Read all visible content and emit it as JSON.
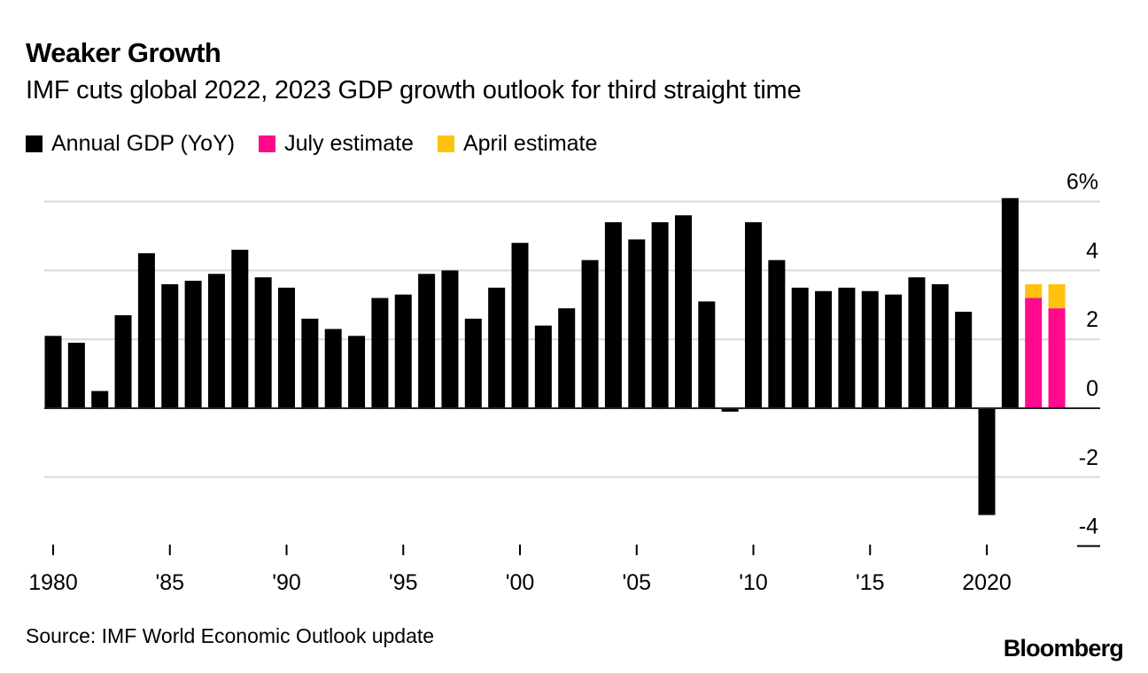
{
  "header": {
    "title": "Weaker Growth",
    "subtitle": "IMF cuts global 2022, 2023 GDP growth outlook for third straight time"
  },
  "legend": [
    {
      "label": "Annual GDP (YoY)",
      "color": "#000000"
    },
    {
      "label": "July estimate",
      "color": "#ff0a8c"
    },
    {
      "label": "April estimate",
      "color": "#ffc20e"
    }
  ],
  "footer": {
    "source": "Source: IMF World Economic Outlook update",
    "brand": "Bloomberg"
  },
  "chart_data": {
    "type": "bar",
    "title": "Weaker Growth",
    "subtitle": "IMF cuts global 2022, 2023 GDP growth outlook for third straight time",
    "xlabel": "",
    "ylabel": "",
    "ylim": [
      -4,
      6
    ],
    "y_ticks": [
      6,
      4,
      2,
      0,
      -2,
      -4
    ],
    "y_tick_labels": [
      "6%",
      "4",
      "2",
      "0",
      "-2",
      "-4"
    ],
    "y_axis_position": "right",
    "x_ticks": [
      1980,
      1985,
      1990,
      1995,
      2000,
      2005,
      2010,
      2015,
      2020
    ],
    "x_tick_labels": [
      "1980",
      "'85",
      "'90",
      "'95",
      "'00",
      "'05",
      "'10",
      "'15",
      "2020"
    ],
    "grid": true,
    "legend_position": "top-left",
    "series": [
      {
        "name": "Annual GDP (YoY)",
        "color": "#000000",
        "x": [
          1980,
          1981,
          1982,
          1983,
          1984,
          1985,
          1986,
          1987,
          1988,
          1989,
          1990,
          1991,
          1992,
          1993,
          1994,
          1995,
          1996,
          1997,
          1998,
          1999,
          2000,
          2001,
          2002,
          2003,
          2004,
          2005,
          2006,
          2007,
          2008,
          2009,
          2010,
          2011,
          2012,
          2013,
          2014,
          2015,
          2016,
          2017,
          2018,
          2019,
          2020,
          2021
        ],
        "values": [
          2.1,
          1.9,
          0.5,
          2.7,
          4.5,
          3.6,
          3.7,
          3.9,
          4.6,
          3.8,
          3.5,
          2.6,
          2.3,
          2.1,
          3.2,
          3.3,
          3.9,
          4.0,
          2.6,
          3.5,
          4.8,
          2.4,
          2.9,
          4.3,
          5.4,
          4.9,
          5.4,
          5.6,
          3.1,
          -0.1,
          5.4,
          4.3,
          3.5,
          3.4,
          3.5,
          3.4,
          3.3,
          3.8,
          3.6,
          2.8,
          -3.1,
          6.1
        ]
      },
      {
        "name": "July estimate",
        "color": "#ff0a8c",
        "x": [
          2022,
          2023
        ],
        "values": [
          3.2,
          2.9
        ]
      },
      {
        "name": "April estimate",
        "color": "#ffc20e",
        "x": [
          2022,
          2023
        ],
        "values": [
          3.6,
          3.6
        ]
      }
    ]
  }
}
